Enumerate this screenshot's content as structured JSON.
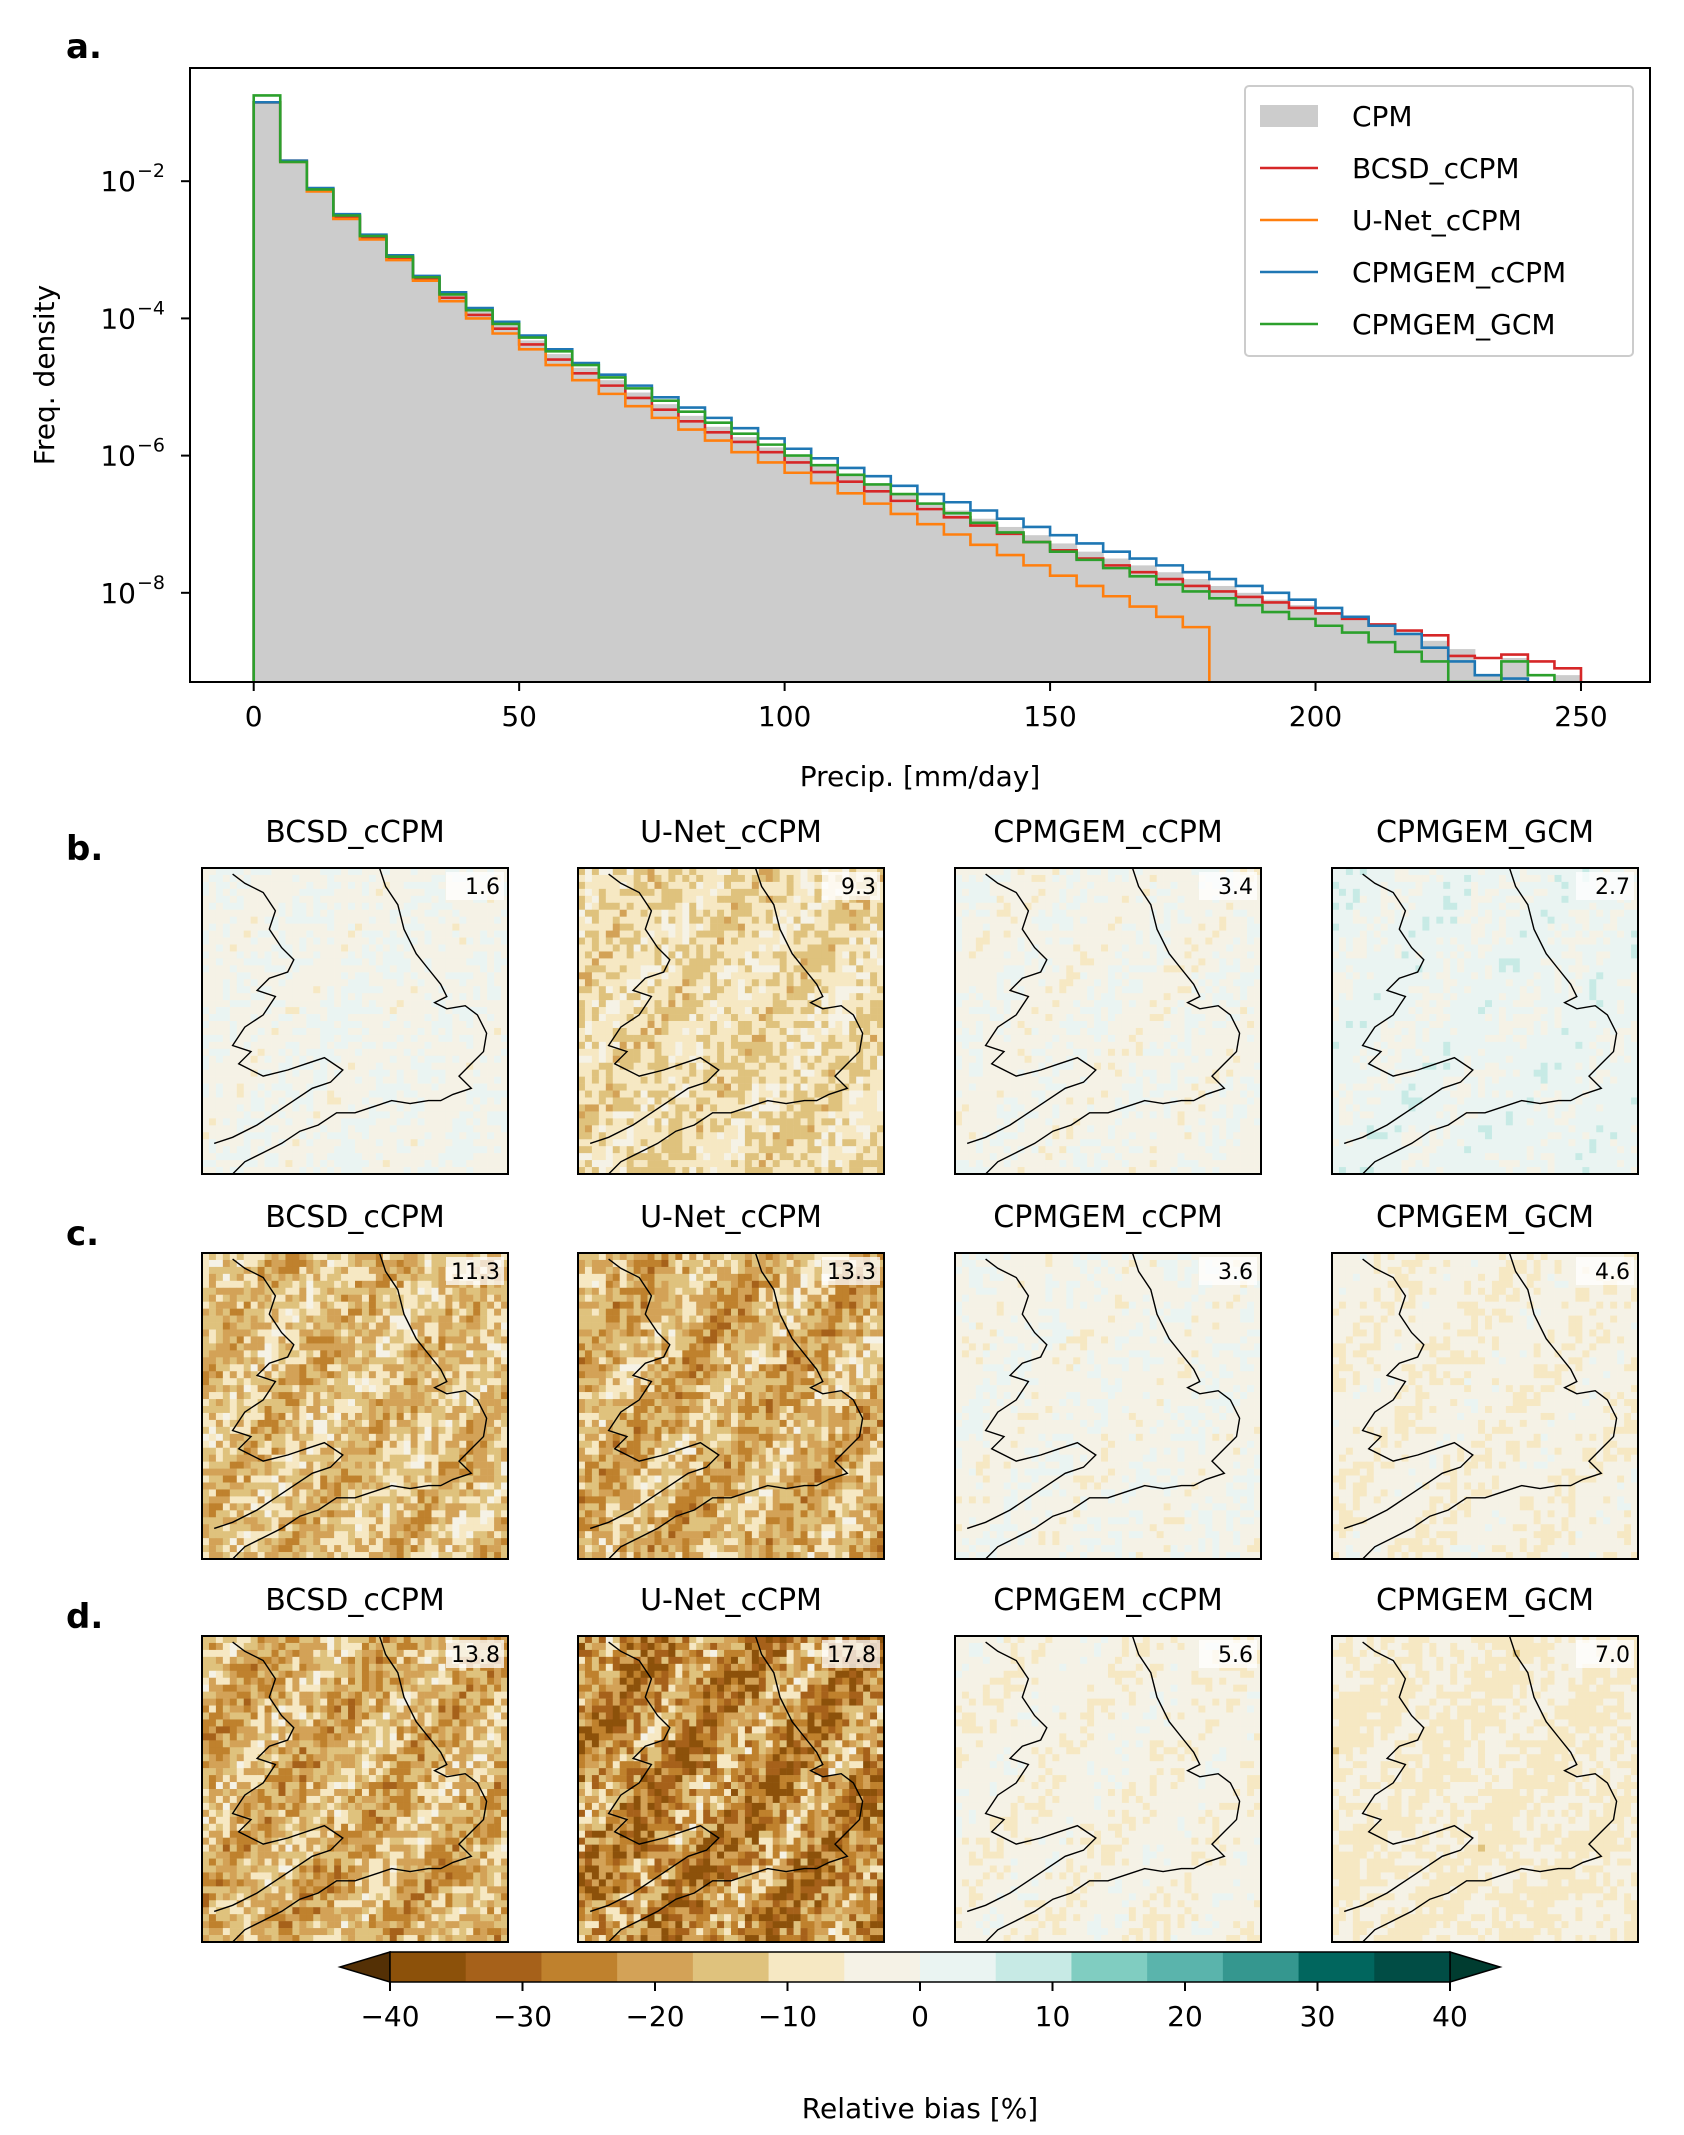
{
  "panels": {
    "a": "a.",
    "b": "b.",
    "c": "c.",
    "d": "d."
  },
  "chart_data": [
    {
      "type": "line",
      "subtype": "step-histogram",
      "panel": "a.",
      "title": "",
      "xlabel": "Precip. [mm/day]",
      "ylabel": "Freq. density",
      "yscale": "log",
      "xlim": [
        -12,
        263
      ],
      "ylim_log10": [
        -9.3,
        -0.35
      ],
      "xticks": [
        0,
        50,
        100,
        150,
        200,
        250
      ],
      "xtick_labels": [
        "0",
        "50",
        "100",
        "150",
        "200",
        "250"
      ],
      "yticks_log10": [
        -2,
        -4,
        -6,
        -8
      ],
      "ytick_labels": [
        "10",
        "10",
        "10",
        "10"
      ],
      "ytick_exponents": [
        "−2",
        "−4",
        "−6",
        "−8"
      ],
      "bin_width": 5,
      "legend_position": "top-right",
      "series": [
        {
          "name": "CPM",
          "style": "filled",
          "color": "#cccccc",
          "log10_values": [
            -0.85,
            -1.7,
            -2.1,
            -2.5,
            -2.8,
            -3.1,
            -3.4,
            -3.65,
            -3.88,
            -4.1,
            -4.32,
            -4.52,
            -4.72,
            -4.9,
            -5.08,
            -5.25,
            -5.42,
            -5.58,
            -5.73,
            -5.88,
            -6.02,
            -6.16,
            -6.29,
            -6.42,
            -6.55,
            -6.68,
            -6.8,
            -6.92,
            -7.04,
            -7.16,
            -7.28,
            -7.4,
            -7.5,
            -7.6,
            -7.7,
            -7.8,
            -7.9,
            -8.0,
            -8.1,
            -8.18,
            -8.28,
            -8.38,
            -8.48,
            -8.58,
            -8.7,
            -8.82,
            -9.2,
            -8.95,
            -9.3,
            -9.2
          ]
        },
        {
          "name": "BCSD_cCPM",
          "style": "step",
          "color": "#d62728",
          "log10_values": [
            -0.85,
            -1.7,
            -2.12,
            -2.52,
            -2.82,
            -3.12,
            -3.42,
            -3.7,
            -3.95,
            -4.15,
            -4.38,
            -4.6,
            -4.8,
            -4.98,
            -5.16,
            -5.33,
            -5.5,
            -5.66,
            -5.8,
            -5.95,
            -6.1,
            -6.24,
            -6.38,
            -6.52,
            -6.66,
            -6.78,
            -6.9,
            -7.02,
            -7.14,
            -7.26,
            -7.38,
            -7.5,
            -7.6,
            -7.7,
            -7.8,
            -7.9,
            -7.98,
            -8.06,
            -8.14,
            -8.22,
            -8.3,
            -8.38,
            -8.46,
            -8.55,
            -8.62,
            -8.92,
            -8.95,
            -8.9,
            -9.0,
            -9.1
          ]
        },
        {
          "name": "U-Net_cCPM",
          "style": "step",
          "color": "#ff7f0e",
          "log10_values": [
            -0.85,
            -1.72,
            -2.15,
            -2.55,
            -2.85,
            -3.15,
            -3.45,
            -3.75,
            -4.0,
            -4.22,
            -4.45,
            -4.68,
            -4.9,
            -5.1,
            -5.28,
            -5.45,
            -5.62,
            -5.78,
            -5.95,
            -6.1,
            -6.25,
            -6.4,
            -6.55,
            -6.7,
            -6.85,
            -7.0,
            -7.15,
            -7.3,
            -7.45,
            -7.6,
            -7.75,
            -7.9,
            -8.05,
            -8.2,
            -8.35,
            -8.5
          ]
        },
        {
          "name": "CPMGEM_cCPM",
          "style": "step",
          "color": "#1f77b4",
          "log10_values": [
            -0.85,
            -1.7,
            -2.1,
            -2.48,
            -2.78,
            -3.08,
            -3.38,
            -3.62,
            -3.85,
            -4.05,
            -4.25,
            -4.45,
            -4.65,
            -4.82,
            -4.98,
            -5.15,
            -5.3,
            -5.45,
            -5.6,
            -5.75,
            -5.9,
            -6.04,
            -6.18,
            -6.3,
            -6.44,
            -6.56,
            -6.68,
            -6.8,
            -6.92,
            -7.04,
            -7.16,
            -7.28,
            -7.4,
            -7.5,
            -7.6,
            -7.7,
            -7.8,
            -7.9,
            -8.0,
            -8.1,
            -8.22,
            -8.35,
            -8.48,
            -8.6,
            -8.8,
            -9.0,
            -9.2,
            -9.25
          ]
        },
        {
          "name": "CPMGEM_GCM",
          "style": "step",
          "color": "#2ca02c",
          "log10_values": [
            -0.75,
            -1.72,
            -2.12,
            -2.5,
            -2.8,
            -3.1,
            -3.4,
            -3.65,
            -3.88,
            -4.08,
            -4.28,
            -4.48,
            -4.68,
            -4.86,
            -5.02,
            -5.2,
            -5.36,
            -5.52,
            -5.68,
            -5.84,
            -6.0,
            -6.14,
            -6.28,
            -6.42,
            -6.56,
            -6.7,
            -6.84,
            -6.98,
            -7.12,
            -7.26,
            -7.4,
            -7.52,
            -7.64,
            -7.76,
            -7.88,
            -7.98,
            -8.08,
            -8.18,
            -8.28,
            -8.38,
            -8.48,
            -8.58,
            -8.72,
            -8.86,
            -9.0,
            -9.3,
            -9.3,
            -9.0,
            -9.2
          ]
        }
      ]
    },
    {
      "type": "heatmap",
      "subtype": "map-grid",
      "rows": [
        {
          "panel": "b.",
          "maps": [
            {
              "title": "BCSD_cCPM",
              "value": "1.6",
              "mean_bias": -1.0
            },
            {
              "title": "U-Net_cCPM",
              "value": "9.3",
              "mean_bias": -9.0
            },
            {
              "title": "CPMGEM_cCPM",
              "value": "3.4",
              "mean_bias": -1.5
            },
            {
              "title": "CPMGEM_GCM",
              "value": "2.7",
              "mean_bias": 1.5
            }
          ]
        },
        {
          "panel": "c.",
          "maps": [
            {
              "title": "BCSD_cCPM",
              "value": "11.3",
              "mean_bias": -13.0
            },
            {
              "title": "U-Net_cCPM",
              "value": "13.3",
              "mean_bias": -15.0
            },
            {
              "title": "CPMGEM_cCPM",
              "value": "3.6",
              "mean_bias": -1.5
            },
            {
              "title": "CPMGEM_GCM",
              "value": "4.6",
              "mean_bias": -3.5
            }
          ]
        },
        {
          "panel": "d.",
          "maps": [
            {
              "title": "BCSD_cCPM",
              "value": "13.8",
              "mean_bias": -15.0
            },
            {
              "title": "U-Net_cCPM",
              "value": "17.8",
              "mean_bias": -21.0
            },
            {
              "title": "CPMGEM_cCPM",
              "value": "5.6",
              "mean_bias": -3.0
            },
            {
              "title": "CPMGEM_GCM",
              "value": "7.0",
              "mean_bias": -5.5
            }
          ]
        }
      ]
    },
    {
      "type": "colorbar",
      "label": "Relative bias [%]",
      "range": [
        -40,
        40
      ],
      "ticks": [
        -40,
        -30,
        -20,
        -10,
        0,
        10,
        20,
        30,
        40
      ],
      "tick_labels": [
        "−40",
        "−30",
        "−20",
        "−10",
        "0",
        "10",
        "20",
        "30",
        "40"
      ],
      "colors": [
        "#8c510a",
        "#a6611a",
        "#bf812d",
        "#d3a257",
        "#dfc27d",
        "#f6e8c3",
        "#f5f2e6",
        "#eaf4f2",
        "#c7eae5",
        "#80cdc1",
        "#5ab4ac",
        "#35978f",
        "#01665e",
        "#014d45"
      ],
      "extend_colors": [
        "#543005",
        "#003c30"
      ]
    }
  ]
}
